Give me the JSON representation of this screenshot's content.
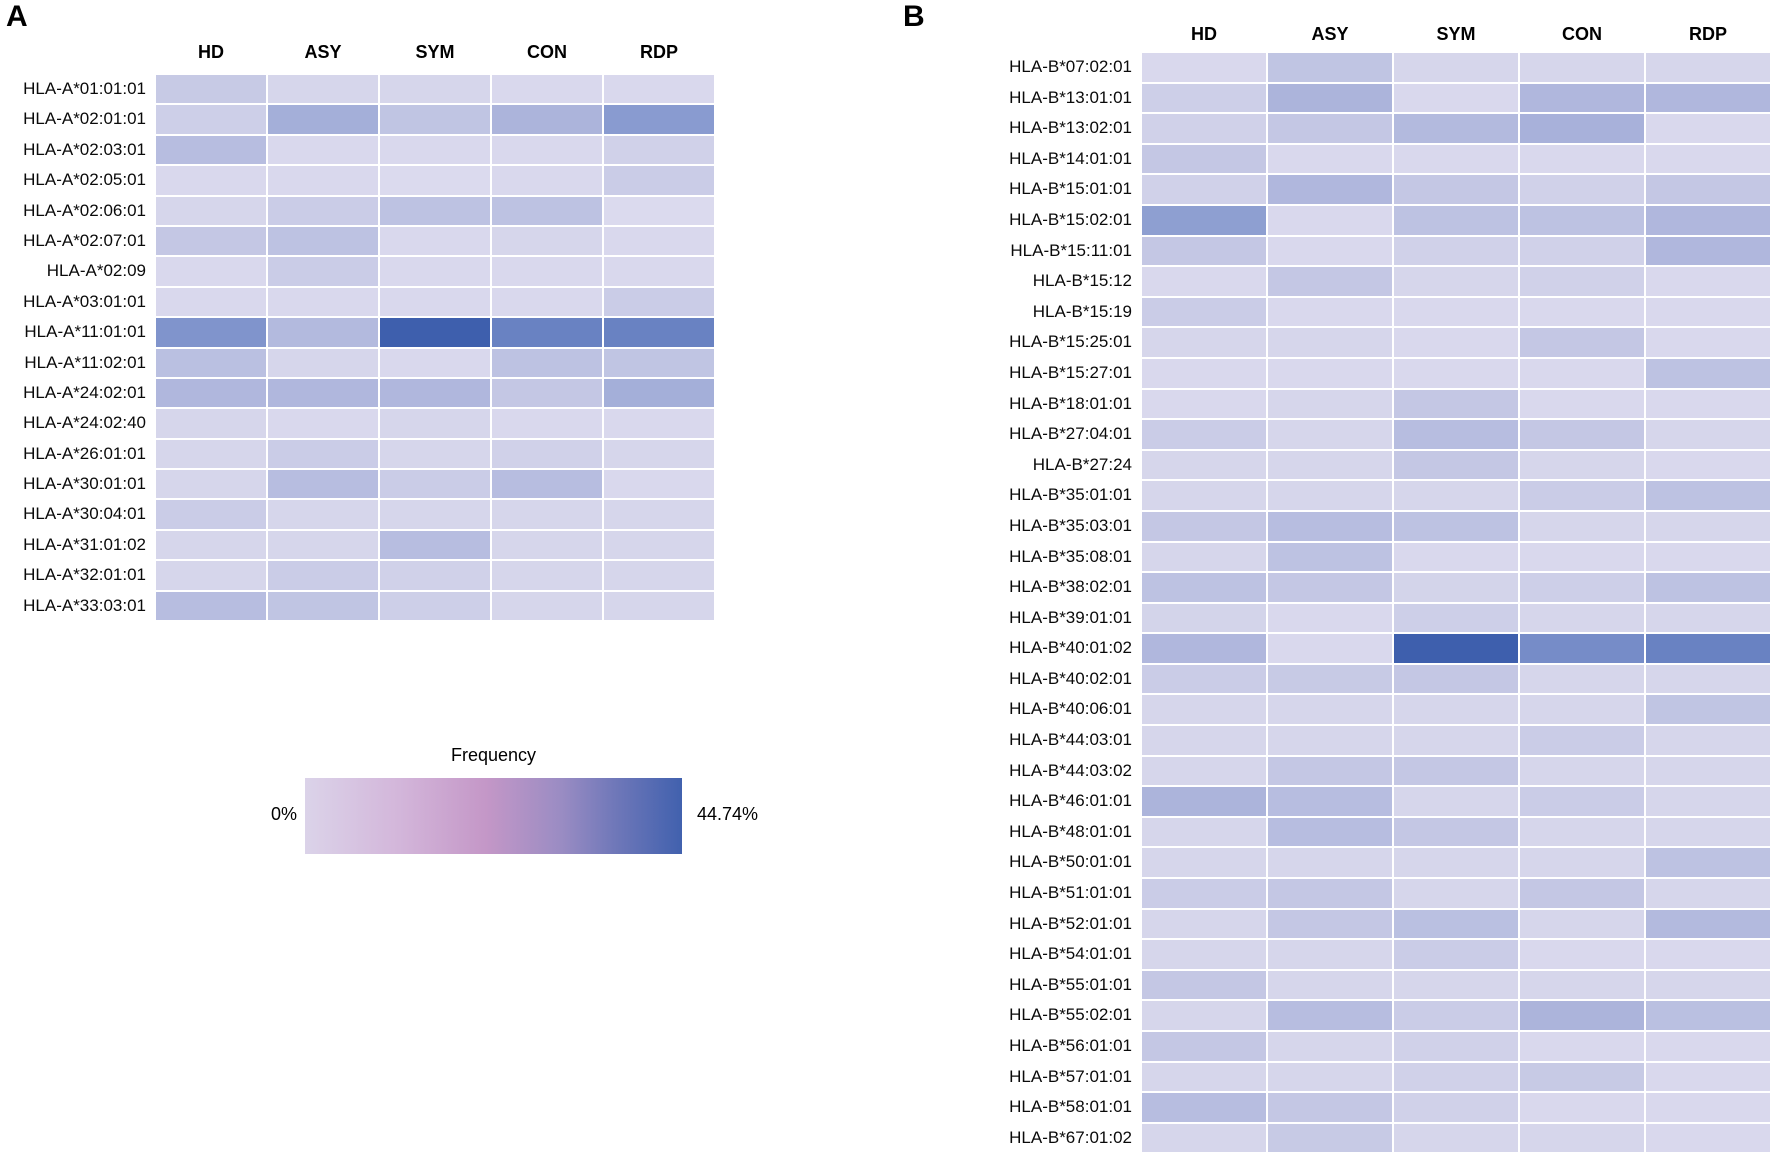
{
  "legend": {
    "title": "Frequency",
    "min_label": "0%",
    "max_label": "44.74%",
    "min": 0,
    "max": 44.74,
    "gradient_stops": [
      [
        0.0,
        "#DBD3E9"
      ],
      [
        0.25,
        "#D3B6DA"
      ],
      [
        0.48,
        "#C497C7"
      ],
      [
        0.68,
        "#9A8CC3"
      ],
      [
        0.82,
        "#7078B9"
      ],
      [
        1.0,
        "#4161AE"
      ]
    ]
  },
  "style": {
    "cell_ramp": [
      [
        0.0,
        "#E3E1F1"
      ],
      [
        0.08,
        "#DAD9ED"
      ],
      [
        0.16,
        "#D0D1E9"
      ],
      [
        0.25,
        "#C3C7E4"
      ],
      [
        0.33,
        "#B8BEE0"
      ],
      [
        0.42,
        "#A9B2DA"
      ],
      [
        0.5,
        "#9BA9D6"
      ],
      [
        0.6,
        "#8598CE"
      ],
      [
        0.72,
        "#6C84C3"
      ],
      [
        0.85,
        "#5572B8"
      ],
      [
        1.0,
        "#3E5FAD"
      ]
    ],
    "grid_line_color": "#FFFFFF",
    "text_color": "#000000"
  },
  "chart_data": [
    {
      "type": "heatmap",
      "panel": "A",
      "unit": "percent_frequency",
      "value_range": [
        0,
        44.74
      ],
      "columns": [
        "HD",
        "ASY",
        "SYM",
        "CON",
        "RDP"
      ],
      "rows": [
        {
          "label": "HLA-A*01:01:01",
          "values": [
            10,
            5,
            5,
            4,
            4
          ]
        },
        {
          "label": "HLA-A*02:01:01",
          "values": [
            8,
            20,
            12,
            18,
            26
          ]
        },
        {
          "label": "HLA-A*02:03:01",
          "values": [
            15,
            4,
            4,
            4,
            7
          ]
        },
        {
          "label": "HLA-A*02:05:01",
          "values": [
            4,
            4,
            3,
            4,
            9
          ]
        },
        {
          "label": "HLA-A*02:06:01",
          "values": [
            5,
            9,
            13,
            13,
            3
          ]
        },
        {
          "label": "HLA-A*02:07:01",
          "values": [
            11,
            13,
            4,
            5,
            4
          ]
        },
        {
          "label": "HLA-A*02:09",
          "values": [
            4,
            9,
            4,
            4,
            4
          ]
        },
        {
          "label": "HLA-A*03:01:01",
          "values": [
            4,
            4,
            4,
            4,
            9
          ]
        },
        {
          "label": "HLA-A*11:01:01",
          "values": [
            28,
            16,
            44.74,
            33,
            33
          ]
        },
        {
          "label": "HLA-A*11:02:01",
          "values": [
            14,
            5,
            4,
            13,
            12
          ]
        },
        {
          "label": "HLA-A*24:02:01",
          "values": [
            17,
            17,
            17,
            11,
            20
          ]
        },
        {
          "label": "HLA-A*24:02:40",
          "values": [
            5,
            4,
            5,
            4,
            4
          ]
        },
        {
          "label": "HLA-A*26:01:01",
          "values": [
            5,
            9,
            5,
            7,
            5
          ]
        },
        {
          "label": "HLA-A*30:01:01",
          "values": [
            5,
            15,
            9,
            15,
            4
          ]
        },
        {
          "label": "HLA-A*30:04:01",
          "values": [
            9,
            5,
            5,
            5,
            5
          ]
        },
        {
          "label": "HLA-A*31:01:02",
          "values": [
            5,
            5,
            15,
            5,
            5
          ]
        },
        {
          "label": "HLA-A*32:01:01",
          "values": [
            5,
            9,
            7,
            5,
            5
          ]
        },
        {
          "label": "HLA-A*33:03:01",
          "values": [
            15,
            12,
            8,
            5,
            5
          ]
        }
      ]
    },
    {
      "type": "heatmap",
      "panel": "B",
      "unit": "percent_frequency",
      "value_range": [
        0,
        44.74
      ],
      "columns": [
        "HD",
        "ASY",
        "SYM",
        "CON",
        "RDP"
      ],
      "rows": [
        {
          "label": "HLA-B*07:02:01",
          "values": [
            4,
            12,
            5,
            5,
            5
          ]
        },
        {
          "label": "HLA-B*13:01:01",
          "values": [
            8,
            18,
            4,
            17,
            17
          ]
        },
        {
          "label": "HLA-B*13:02:01",
          "values": [
            7,
            11,
            16,
            19,
            4
          ]
        },
        {
          "label": "HLA-B*14:01:01",
          "values": [
            11,
            4,
            4,
            4,
            4
          ]
        },
        {
          "label": "HLA-B*15:01:01",
          "values": [
            7,
            17,
            11,
            7,
            11
          ]
        },
        {
          "label": "HLA-B*15:02:01",
          "values": [
            25,
            4,
            13,
            13,
            17
          ]
        },
        {
          "label": "HLA-B*15:11:01",
          "values": [
            11,
            4,
            7,
            7,
            17
          ]
        },
        {
          "label": "HLA-B*15:12",
          "values": [
            4,
            11,
            5,
            7,
            4
          ]
        },
        {
          "label": "HLA-B*15:19",
          "values": [
            9,
            4,
            4,
            4,
            4
          ]
        },
        {
          "label": "HLA-B*15:25:01",
          "values": [
            5,
            5,
            4,
            11,
            4
          ]
        },
        {
          "label": "HLA-B*15:27:01",
          "values": [
            4,
            4,
            4,
            4,
            13
          ]
        },
        {
          "label": "HLA-B*18:01:01",
          "values": [
            4,
            5,
            11,
            4,
            4
          ]
        },
        {
          "label": "HLA-B*27:04:01",
          "values": [
            9,
            5,
            15,
            11,
            5
          ]
        },
        {
          "label": "HLA-B*27:24",
          "values": [
            5,
            5,
            11,
            5,
            4
          ]
        },
        {
          "label": "HLA-B*35:01:01",
          "values": [
            5,
            5,
            5,
            9,
            13
          ]
        },
        {
          "label": "HLA-B*35:03:01",
          "values": [
            11,
            15,
            13,
            5,
            5
          ]
        },
        {
          "label": "HLA-B*35:08:01",
          "values": [
            5,
            13,
            4,
            4,
            4
          ]
        },
        {
          "label": "HLA-B*38:02:01",
          "values": [
            13,
            11,
            6,
            8,
            13
          ]
        },
        {
          "label": "HLA-B*39:01:01",
          "values": [
            6,
            4,
            8,
            5,
            5
          ]
        },
        {
          "label": "HLA-B*40:01:02",
          "values": [
            17,
            4,
            44.74,
            30,
            33
          ]
        },
        {
          "label": "HLA-B*40:02:01",
          "values": [
            9,
            10,
            11,
            5,
            5
          ]
        },
        {
          "label": "HLA-B*40:06:01",
          "values": [
            5,
            5,
            5,
            5,
            12
          ]
        },
        {
          "label": "HLA-B*44:03:01",
          "values": [
            5,
            5,
            5,
            9,
            5
          ]
        },
        {
          "label": "HLA-B*44:03:02",
          "values": [
            5,
            11,
            11,
            5,
            5
          ]
        },
        {
          "label": "HLA-B*46:01:01",
          "values": [
            18,
            15,
            5,
            9,
            5
          ]
        },
        {
          "label": "HLA-B*48:01:01",
          "values": [
            5,
            15,
            11,
            5,
            5
          ]
        },
        {
          "label": "HLA-B*50:01:01",
          "values": [
            5,
            5,
            5,
            5,
            13
          ]
        },
        {
          "label": "HLA-B*51:01:01",
          "values": [
            9,
            11,
            5,
            11,
            5
          ]
        },
        {
          "label": "HLA-B*52:01:01",
          "values": [
            5,
            11,
            14,
            5,
            16
          ]
        },
        {
          "label": "HLA-B*54:01:01",
          "values": [
            5,
            5,
            9,
            4,
            4
          ]
        },
        {
          "label": "HLA-B*55:01:01",
          "values": [
            11,
            5,
            5,
            5,
            5
          ]
        },
        {
          "label": "HLA-B*55:02:01",
          "values": [
            5,
            15,
            9,
            18,
            14
          ]
        },
        {
          "label": "HLA-B*56:01:01",
          "values": [
            11,
            5,
            7,
            4,
            4
          ]
        },
        {
          "label": "HLA-B*57:01:01",
          "values": [
            5,
            5,
            7,
            10,
            4
          ]
        },
        {
          "label": "HLA-B*58:01:01",
          "values": [
            15,
            11,
            7,
            4,
            4
          ]
        },
        {
          "label": "HLA-B*67:01:02",
          "values": [
            5,
            10,
            5,
            5,
            4
          ]
        }
      ]
    }
  ]
}
